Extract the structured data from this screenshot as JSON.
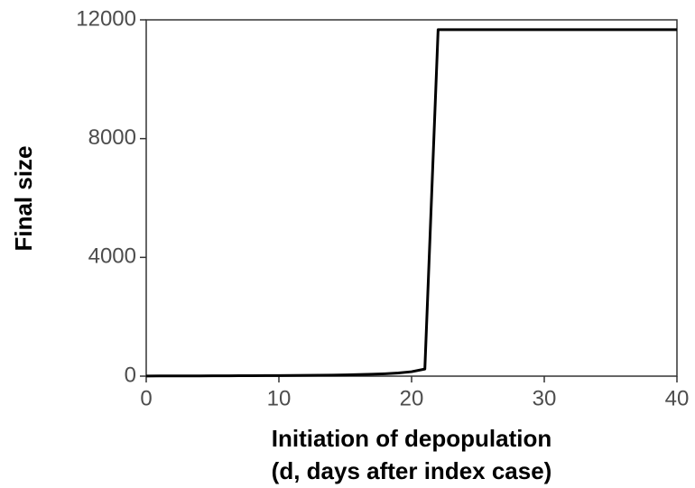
{
  "chart_data": {
    "type": "line",
    "xlabel": [
      "Initiation of depopulation",
      "(d, days after index case)"
    ],
    "ylabel": "Final size",
    "x": [
      0,
      1,
      2,
      3,
      4,
      5,
      6,
      7,
      8,
      9,
      10,
      11,
      12,
      13,
      14,
      15,
      16,
      17,
      18,
      19,
      20,
      21,
      22,
      23,
      24,
      25,
      26,
      27,
      28,
      29,
      30,
      31,
      32,
      33,
      34,
      35,
      36,
      37,
      38,
      39,
      40
    ],
    "series": [
      {
        "color": "#000000",
        "values": [
          5,
          6,
          7,
          8,
          9,
          10,
          12,
          14,
          16,
          18,
          20,
          23,
          27,
          31,
          36,
          43,
          52,
          63,
          80,
          105,
          150,
          240,
          11670,
          11670,
          11670,
          11670,
          11670,
          11670,
          11670,
          11670,
          11670,
          11670,
          11670,
          11670,
          11670,
          11670,
          11670,
          11670,
          11670,
          11670,
          11670
        ]
      }
    ],
    "xlim": [
      0,
      40
    ],
    "xticks": [
      0,
      10,
      20,
      30,
      40
    ],
    "ylim": [
      0,
      12000
    ],
    "yticks": [
      0,
      4000,
      8000,
      12000
    ],
    "grid": false
  }
}
